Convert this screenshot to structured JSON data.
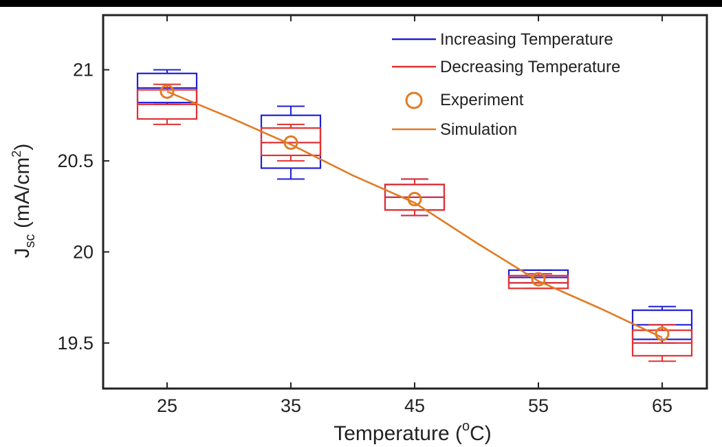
{
  "chart_data": {
    "type": "box",
    "xlabel": "Temperature (",
    "xlabel_unit_sup": "o",
    "xlabel_unit_rest": "C)",
    "ylabel_main": "J",
    "ylabel_sub": "sc",
    "ylabel_unit": " (mA/cm",
    "ylabel_unit_sup": "2",
    "ylabel_unit_close": ")",
    "categories": [
      "25",
      "35",
      "45",
      "55",
      "65"
    ],
    "ylim": [
      19.25,
      21.3
    ],
    "yticks": [
      19.5,
      20,
      20.5,
      21
    ],
    "ytick_labels": [
      "19.5",
      "20",
      "20.5",
      "21"
    ],
    "legend_position": "top-right",
    "series": [
      {
        "name": "Increasing  Temperature",
        "color": "#1f1fd6",
        "boxes": [
          {
            "whisker_low": 20.81,
            "q1": 20.82,
            "median": 20.9,
            "q3": 20.98,
            "whisker_high": 21.0
          },
          {
            "whisker_low": 20.4,
            "q1": 20.46,
            "median": 20.6,
            "q3": 20.75,
            "whisker_high": 20.8
          },
          {
            "whisker_low": 20.2,
            "q1": 20.23,
            "median": 20.3,
            "q3": 20.37,
            "whisker_high": 20.4
          },
          {
            "whisker_low": 19.83,
            "q1": 19.83,
            "median": 19.86,
            "q3": 19.9,
            "whisker_high": 19.9
          },
          {
            "whisker_low": 19.5,
            "q1": 19.52,
            "median": 19.6,
            "q3": 19.68,
            "whisker_high": 19.7
          }
        ]
      },
      {
        "name": "Decreasing Temperature",
        "color": "#e23030",
        "boxes": [
          {
            "whisker_low": 20.7,
            "q1": 20.73,
            "median": 20.81,
            "q3": 20.89,
            "whisker_high": 20.92
          },
          {
            "whisker_low": 20.5,
            "q1": 20.53,
            "median": 20.6,
            "q3": 20.68,
            "whisker_high": 20.7
          },
          {
            "whisker_low": 20.2,
            "q1": 20.23,
            "median": 20.3,
            "q3": 20.37,
            "whisker_high": 20.4
          },
          {
            "whisker_low": 19.8,
            "q1": 19.8,
            "median": 19.83,
            "q3": 19.87,
            "whisker_high": 19.88
          },
          {
            "whisker_low": 19.4,
            "q1": 19.43,
            "median": 19.5,
            "q3": 19.57,
            "whisker_high": 19.6
          }
        ]
      }
    ],
    "experiment": {
      "name": "Experiment",
      "color": "#e07b22",
      "values": [
        20.88,
        20.6,
        20.29,
        19.85,
        19.55
      ]
    },
    "simulation": {
      "name": "Simulation",
      "color": "#e07b22",
      "x": [
        25,
        30,
        35,
        40,
        45,
        50,
        55,
        60,
        65
      ],
      "values": [
        20.88,
        20.74,
        20.59,
        20.42,
        20.27,
        20.05,
        19.84,
        19.69,
        19.53
      ]
    }
  }
}
